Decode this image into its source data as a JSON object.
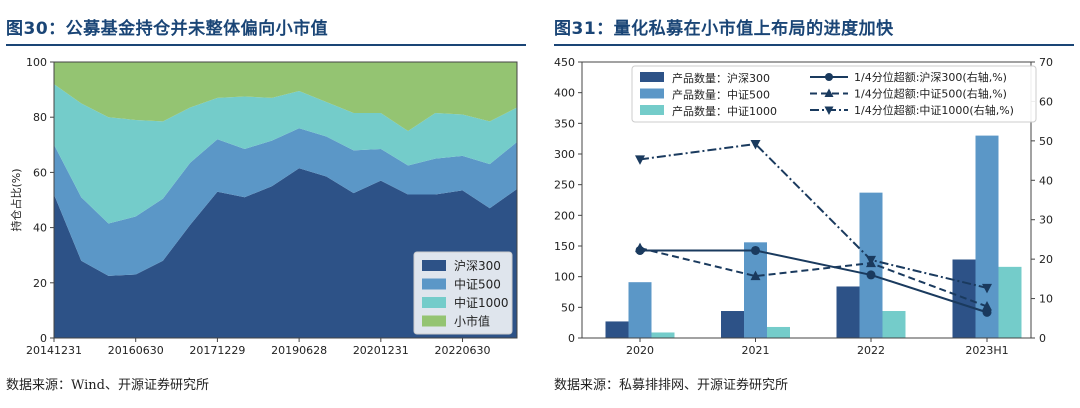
{
  "left": {
    "title": "图30：公募基金持仓并未整体偏向小市值",
    "source": "数据来源：Wind、开源证券研究所"
  },
  "right": {
    "title": "图31：量化私募在小市值上布局的进度加快",
    "source": "数据来源：私募排排网、开源证券研究所"
  },
  "chart_data": [
    {
      "type": "area",
      "stacked": true,
      "ylabel": "持仓占比(%)",
      "ylim": [
        0,
        100
      ],
      "yticks": [
        0,
        20,
        40,
        60,
        80,
        100
      ],
      "xtick_labels": [
        "20141231",
        "20160630",
        "20171229",
        "20190628",
        "20201231",
        "20220630"
      ],
      "x": [
        "2014H2",
        "2015H1",
        "2015H2",
        "2016H1",
        "2016H2",
        "2017H1",
        "2017H2",
        "2018H1",
        "2018H2",
        "2019H1",
        "2019H2",
        "2020H1",
        "2020H2",
        "2021H1",
        "2021H2",
        "2022H1",
        "2022H2",
        "2023H1"
      ],
      "series": [
        {
          "name": "沪深300",
          "color": "#2d5287",
          "values": [
            52,
            28,
            22.5,
            23,
            28,
            41,
            53,
            51,
            55,
            61.5,
            58.5,
            52.5,
            57,
            52,
            52,
            53.5,
            47,
            54
          ]
        },
        {
          "name": "中证500",
          "color": "#5b97c7",
          "values": [
            18,
            23,
            19,
            21,
            22.5,
            22.5,
            19,
            17.5,
            16.5,
            14.5,
            14.5,
            15.5,
            11.5,
            10.5,
            13,
            12.5,
            16,
            17
          ]
        },
        {
          "name": "中证1000",
          "color": "#74ccca",
          "values": [
            22,
            34,
            38.5,
            35,
            28,
            20,
            15,
            19,
            15.5,
            13.5,
            12.5,
            13.5,
            13,
            12.5,
            16.5,
            15,
            15.5,
            12.5
          ]
        },
        {
          "name": "小市值",
          "color": "#94c472",
          "values": [
            8,
            15,
            20,
            21,
            21.5,
            16.5,
            13,
            12.5,
            13,
            10.5,
            14.5,
            18.5,
            18.5,
            25,
            18.5,
            19,
            21.5,
            16.5
          ]
        }
      ],
      "legend": "bottom-right"
    },
    {
      "type": "bar",
      "categories": [
        "2020",
        "2021",
        "2022",
        "2023H1"
      ],
      "ylim": [
        0,
        450
      ],
      "yticks": [
        0,
        50,
        100,
        150,
        200,
        250,
        300,
        350,
        400,
        450
      ],
      "y2lim": [
        0,
        70
      ],
      "y2ticks": [
        0,
        10,
        20,
        30,
        40,
        50,
        60,
        70
      ],
      "series": [
        {
          "name": "产品数量：沪深300",
          "color": "#2d5287",
          "values": [
            27,
            44,
            84,
            128
          ]
        },
        {
          "name": "产品数量：中证500",
          "color": "#5b97c7",
          "values": [
            91,
            156,
            237,
            330
          ]
        },
        {
          "name": "产品数量：中证1000",
          "color": "#74ccca",
          "values": [
            9,
            18,
            44,
            116
          ]
        }
      ],
      "lines": [
        {
          "name": "1/4分位超额:沪深300(右轴,%)",
          "color": "#1a3a5e",
          "style": "solid",
          "marker": "circle",
          "values": [
            22.2,
            22.2,
            16,
            6.5
          ]
        },
        {
          "name": "1/4分位超额:中证500(右轴,%)",
          "color": "#1a3a5e",
          "style": "dashed",
          "marker": "triangle-up",
          "values": [
            22.8,
            15.7,
            19,
            8
          ]
        },
        {
          "name": "1/4分位超额:中证1000(右轴,%)",
          "color": "#1a3a5e",
          "style": "dashdot",
          "marker": "triangle-down",
          "values": [
            45.3,
            49.2,
            19.8,
            12.7
          ]
        }
      ],
      "legend": "top"
    }
  ]
}
